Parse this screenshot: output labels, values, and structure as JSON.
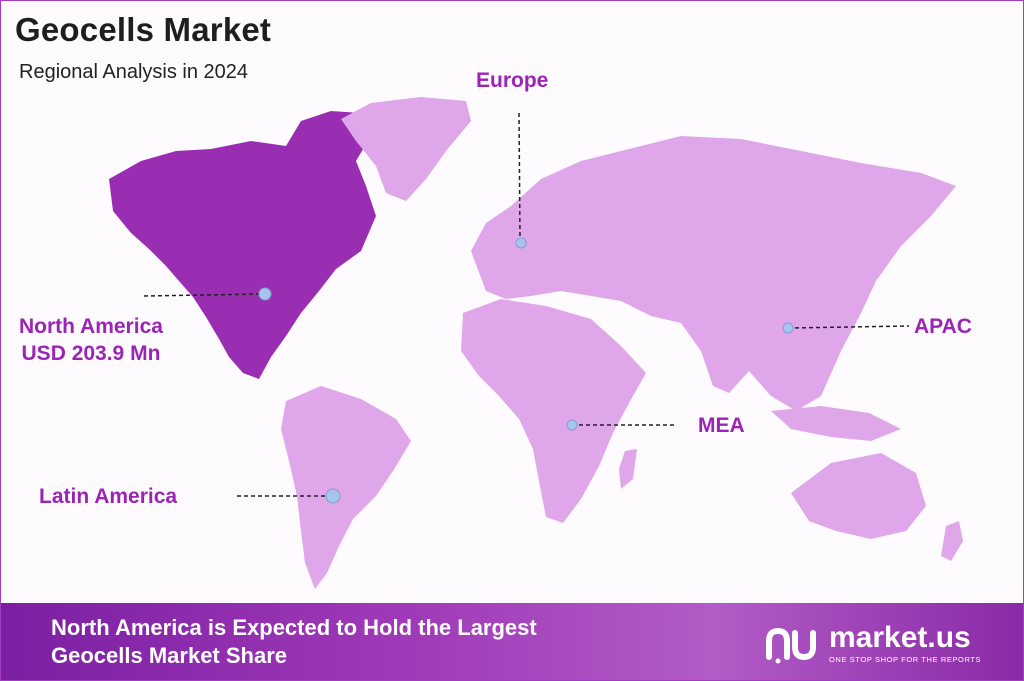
{
  "header": {
    "title": "Geocells Market",
    "subtitle": "Regional Analysis in 2024"
  },
  "regions": {
    "north_america": {
      "name": "North America",
      "value": "USD 203.9 Mn"
    },
    "europe": {
      "name": "Europe"
    },
    "apac": {
      "name": "APAC"
    },
    "mea": {
      "name": "MEA"
    },
    "latin_america": {
      "name": "Latin America"
    }
  },
  "footer": {
    "line1": "North America is Expected to Hold the Largest",
    "line2": "Geocells Market Share",
    "brand_name": "market.us",
    "brand_tagline": "ONE STOP SHOP FOR THE REPORTS"
  },
  "colors": {
    "highlight_region": "#9a2eb3",
    "other_regions": "#dfa6ea",
    "label": "#9b24b5",
    "footer": "#a03ab8"
  }
}
